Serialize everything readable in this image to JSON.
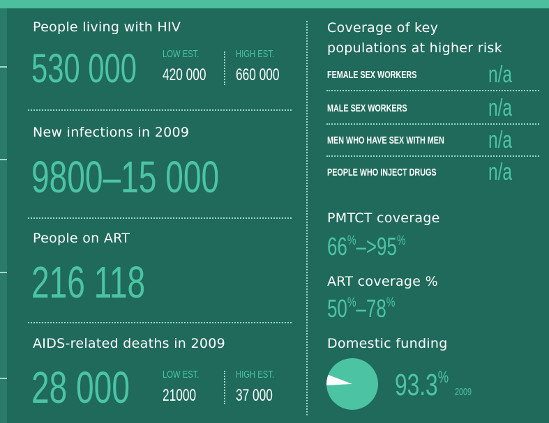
{
  "left": [
    {
      "title": "People living with HIV",
      "value": "530 000",
      "low_label": "LOW EST.",
      "low": "420 000",
      "high_label": "HIGH EST.",
      "high": "660 000"
    },
    {
      "title": "New infections in 2009",
      "value": "9800–15 000"
    },
    {
      "title": "People on ART",
      "value": "216 118"
    },
    {
      "title": "AIDS-related deaths in 2009",
      "value": "28 000",
      "low_label": "LOW EST.",
      "low": "21000",
      "high_label": "HIGH EST.",
      "high": "37 000"
    }
  ],
  "coverage": {
    "title_lines": [
      "Coverage of key",
      "populations at higher risk"
    ],
    "rows": [
      {
        "label": "FEMALE SEX WORKERS",
        "value": "n/a"
      },
      {
        "label": "MALE SEX WORKERS",
        "value": "n/a"
      },
      {
        "label": "MEN WHO HAVE SEX WITH MEN",
        "value": "n/a"
      },
      {
        "label": "PEOPLE WHO INJECT DRUGS",
        "value": "n/a"
      }
    ]
  },
  "pmtct": {
    "label": "PMTCT coverage",
    "from": "66",
    "to": "95",
    "unit": "%",
    "sep": "–>"
  },
  "art_coverage": {
    "label": "ART coverage %",
    "from": "50",
    "to": "78",
    "unit": "%",
    "sep": "–"
  },
  "domestic_funding": {
    "label": "Domestic funding",
    "value": 93.3,
    "unit": "%",
    "year": "2009"
  }
}
